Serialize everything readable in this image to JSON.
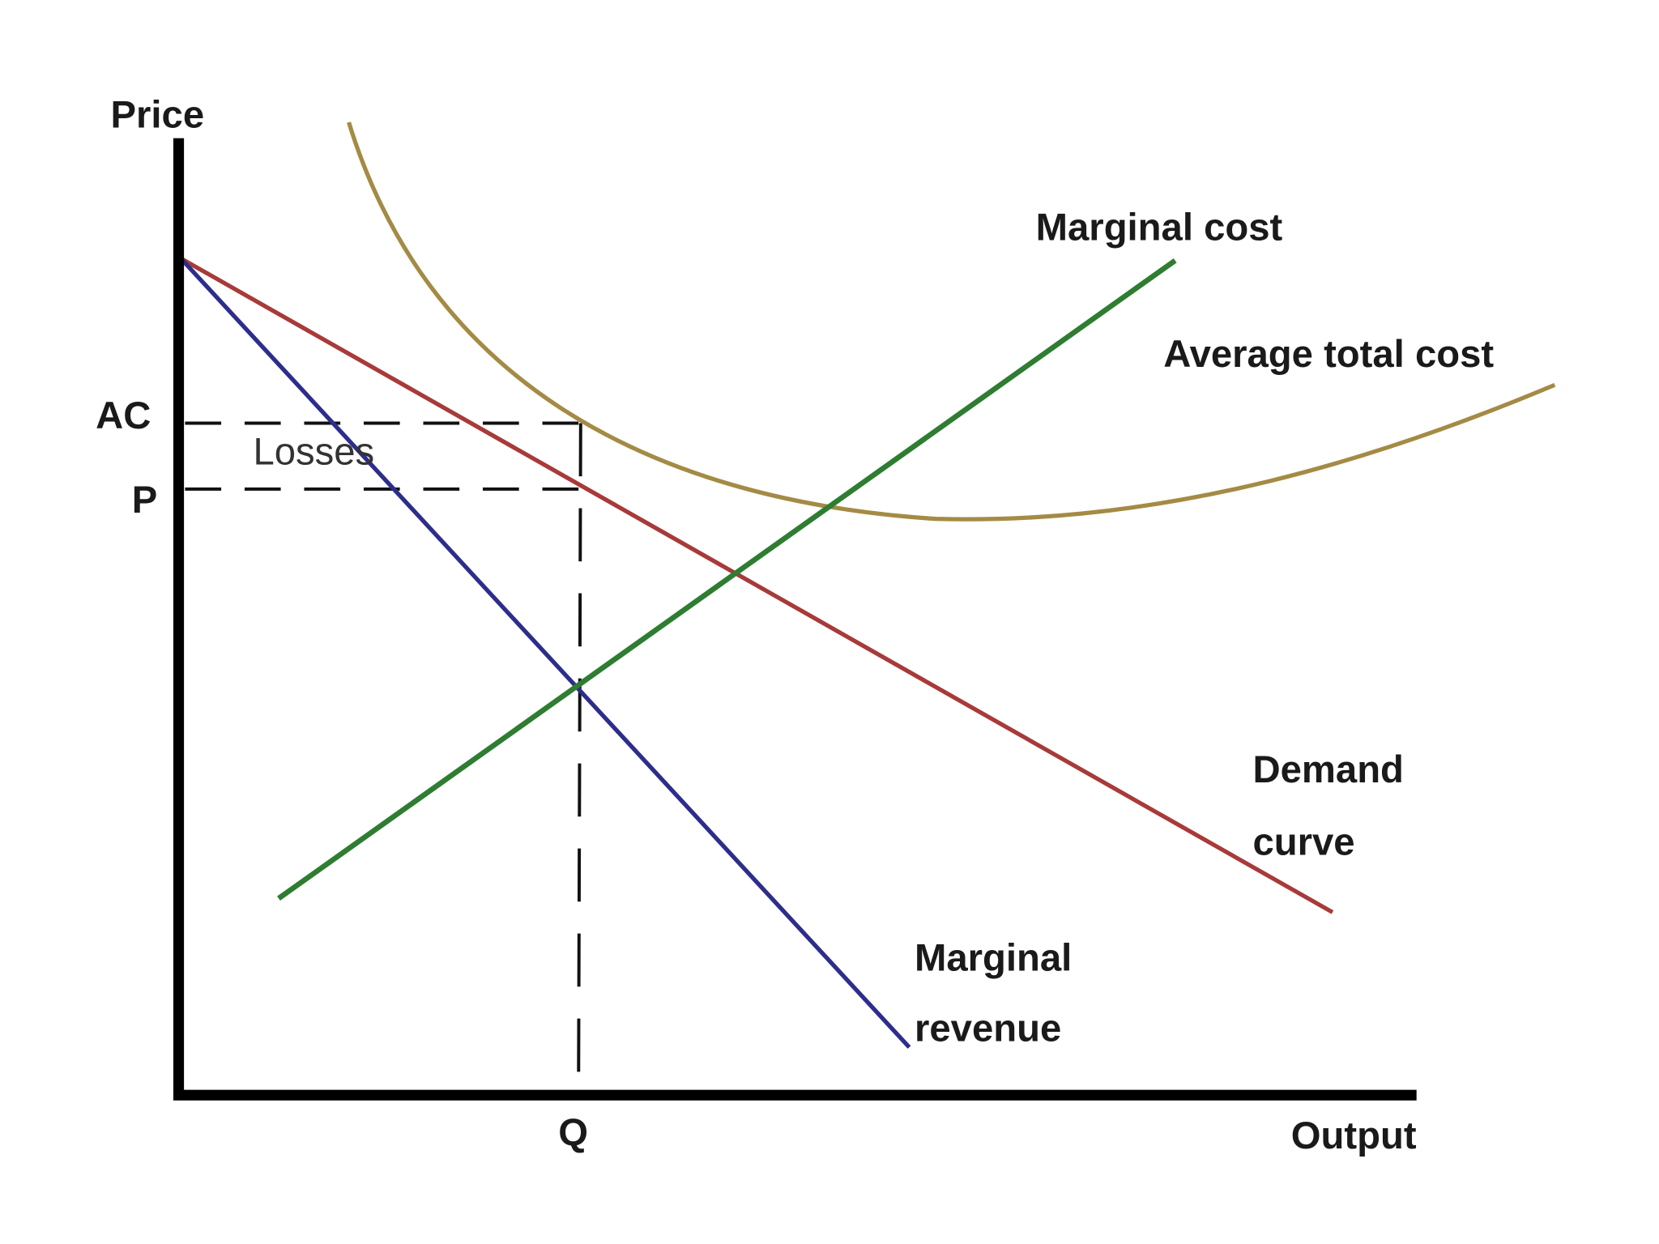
{
  "axes": {
    "y_label": "Price",
    "x_label": "Output"
  },
  "ticks": {
    "ac": "AC",
    "p": "P",
    "q": "Q"
  },
  "region_label": "Losses",
  "curves": {
    "marginal_cost": "Marginal cost",
    "average_total_cost": "Average total cost",
    "demand": [
      "Demand",
      "curve"
    ],
    "marginal_revenue": [
      "Marginal",
      "revenue"
    ]
  }
}
